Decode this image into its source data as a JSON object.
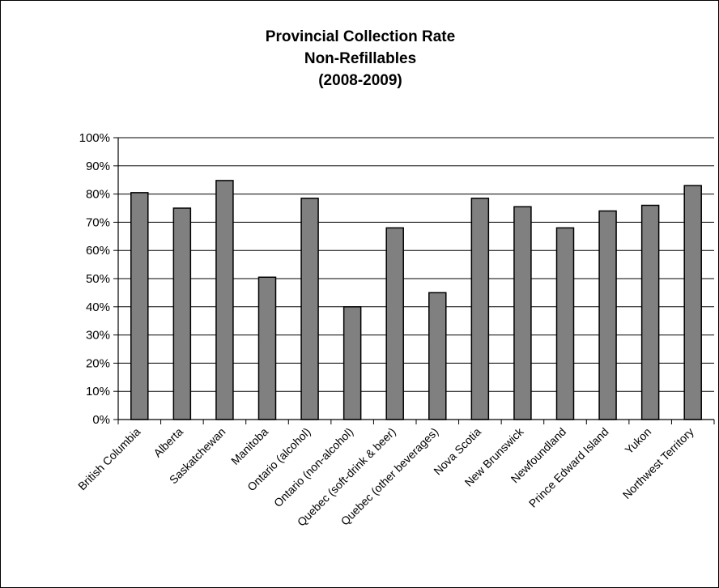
{
  "chart_data": {
    "type": "bar",
    "title_lines": [
      "Provincial Collection Rate",
      "Non-Refillables",
      "(2008-2009)"
    ],
    "xlabel": "",
    "ylabel": "",
    "ylim": [
      0,
      100
    ],
    "y_ticks": [
      "0%",
      "10%",
      "20%",
      "30%",
      "40%",
      "50%",
      "60%",
      "70%",
      "80%",
      "90%",
      "100%"
    ],
    "grid": true,
    "legend": false,
    "bar_color": "#808080",
    "categories": [
      "British Columbia",
      "Alberta",
      "Saskatchewan",
      "Manitoba",
      "Ontario (alcohol)",
      "Ontario (non-alcohol)",
      "Quebec (soft-drink & beer)",
      "Quebec (other beverages)",
      "Nova Scotia",
      "New Brunswick",
      "Newfoundland",
      "Prince Edward Island",
      "Yukon",
      "Northwest Territory"
    ],
    "values": [
      80.5,
      75,
      84.8,
      50.5,
      78.5,
      40,
      68,
      45,
      78.5,
      75.5,
      68,
      74,
      76,
      83
    ]
  }
}
